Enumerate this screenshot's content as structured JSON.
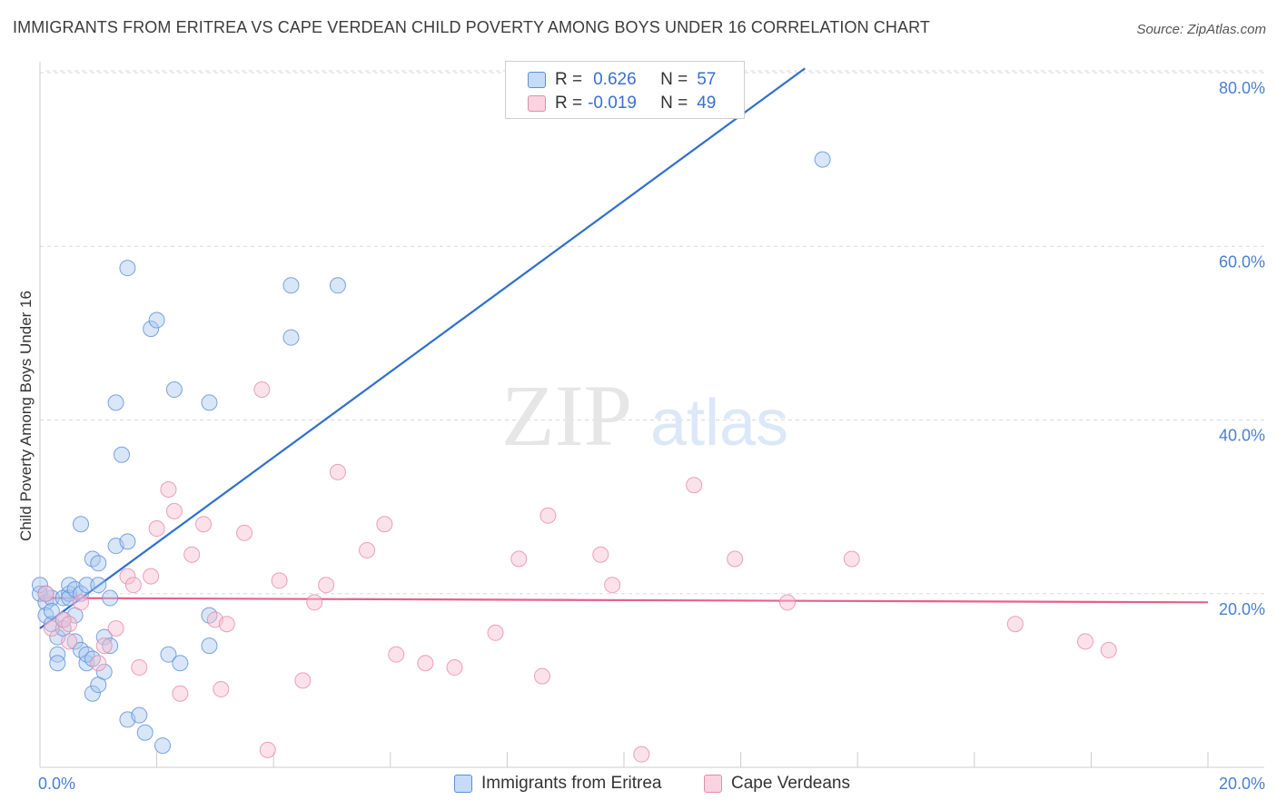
{
  "header": {
    "title": "IMMIGRANTS FROM ERITREA VS CAPE VERDEAN CHILD POVERTY AMONG BOYS UNDER 16 CORRELATION CHART",
    "source": "Source: ZipAtlas.com"
  },
  "watermark": {
    "zip": "ZIP",
    "atlas": "atlas"
  },
  "legend": {
    "rows": [
      {
        "r_label": "R =",
        "r_value": "0.626",
        "n_label": "N =",
        "n_value": "57"
      },
      {
        "r_label": "R =",
        "r_value": "-0.019",
        "n_label": "N =",
        "n_value": "49"
      }
    ]
  },
  "colors": {
    "eritrea_fill": "#a8c8f0",
    "eritrea_stroke": "#5b8fd8",
    "eritrea_line": "#2f6fcf",
    "cape_fill": "#f7bfd0",
    "cape_stroke": "#e88aa8",
    "cape_line": "#e8608a",
    "tick_text": "#4a7fd0",
    "grid": "#d9d9d9"
  },
  "chart_data": {
    "type": "scatter",
    "title": "IMMIGRANTS FROM ERITREA VS CAPE VERDEAN CHILD POVERTY AMONG BOYS UNDER 16 CORRELATION CHART",
    "xlabel": "",
    "ylabel": "Child Poverty Among Boys Under 16",
    "xlim": [
      0,
      20
    ],
    "ylim": [
      0,
      80
    ],
    "x_ticks": [
      "0.0%",
      "20.0%"
    ],
    "y_ticks": [
      "20.0%",
      "40.0%",
      "60.0%",
      "80.0%"
    ],
    "legend_position": "bottom",
    "series": [
      {
        "name": "Immigrants from Eritrea",
        "trendline": {
          "x": [
            0,
            13.1
          ],
          "y": [
            16.0,
            80.5
          ]
        },
        "points": [
          [
            0.0,
            20.0
          ],
          [
            0.1,
            19.0
          ],
          [
            0.1,
            17.5
          ],
          [
            0.2,
            16.5
          ],
          [
            0.2,
            19.5
          ],
          [
            0.3,
            15.0
          ],
          [
            0.3,
            13.0
          ],
          [
            0.3,
            12.0
          ],
          [
            0.4,
            16.0
          ],
          [
            0.4,
            19.5
          ],
          [
            0.5,
            20.0
          ],
          [
            0.5,
            19.5
          ],
          [
            0.5,
            21.0
          ],
          [
            0.6,
            20.5
          ],
          [
            0.6,
            17.5
          ],
          [
            0.6,
            14.5
          ],
          [
            0.7,
            20.0
          ],
          [
            0.7,
            13.5
          ],
          [
            0.7,
            28.0
          ],
          [
            0.8,
            12.0
          ],
          [
            0.8,
            13.0
          ],
          [
            0.8,
            21.0
          ],
          [
            0.9,
            12.5
          ],
          [
            0.9,
            24.0
          ],
          [
            0.9,
            8.5
          ],
          [
            1.0,
            21.0
          ],
          [
            1.0,
            23.5
          ],
          [
            1.0,
            9.5
          ],
          [
            1.1,
            11.0
          ],
          [
            1.1,
            15.0
          ],
          [
            1.2,
            14.0
          ],
          [
            1.2,
            19.5
          ],
          [
            1.3,
            25.5
          ],
          [
            1.3,
            42.0
          ],
          [
            1.4,
            36.0
          ],
          [
            1.5,
            26.0
          ],
          [
            1.5,
            57.5
          ],
          [
            1.5,
            5.5
          ],
          [
            1.7,
            6.0
          ],
          [
            1.8,
            4.0
          ],
          [
            1.9,
            50.5
          ],
          [
            2.0,
            51.5
          ],
          [
            2.1,
            2.5
          ],
          [
            2.2,
            13.0
          ],
          [
            2.3,
            43.5
          ],
          [
            2.4,
            12.0
          ],
          [
            2.9,
            42.0
          ],
          [
            2.9,
            17.5
          ],
          [
            2.9,
            14.0
          ],
          [
            4.3,
            55.5
          ],
          [
            4.3,
            49.5
          ],
          [
            5.1,
            55.5
          ],
          [
            13.4,
            70.0
          ],
          [
            0.0,
            21.0
          ],
          [
            0.1,
            20.0
          ],
          [
            0.2,
            18.0
          ],
          [
            0.4,
            17.0
          ]
        ]
      },
      {
        "name": "Cape Verdeans",
        "trendline": {
          "x": [
            0,
            20
          ],
          "y": [
            19.5,
            19.0
          ]
        },
        "points": [
          [
            0.1,
            20.0
          ],
          [
            0.2,
            16.0
          ],
          [
            0.4,
            17.0
          ],
          [
            0.5,
            14.5
          ],
          [
            0.5,
            16.5
          ],
          [
            0.7,
            19.0
          ],
          [
            1.0,
            12.0
          ],
          [
            1.1,
            14.0
          ],
          [
            1.3,
            16.0
          ],
          [
            1.5,
            22.0
          ],
          [
            1.6,
            21.0
          ],
          [
            1.7,
            11.5
          ],
          [
            1.9,
            22.0
          ],
          [
            2.0,
            27.5
          ],
          [
            2.2,
            32.0
          ],
          [
            2.3,
            29.5
          ],
          [
            2.4,
            8.5
          ],
          [
            2.6,
            24.5
          ],
          [
            2.8,
            28.0
          ],
          [
            3.0,
            17.0
          ],
          [
            3.1,
            9.0
          ],
          [
            3.2,
            16.5
          ],
          [
            3.5,
            27.0
          ],
          [
            3.8,
            43.5
          ],
          [
            3.9,
            2.0
          ],
          [
            4.1,
            21.5
          ],
          [
            4.5,
            10.0
          ],
          [
            4.7,
            19.0
          ],
          [
            4.9,
            21.0
          ],
          [
            5.1,
            34.0
          ],
          [
            5.6,
            25.0
          ],
          [
            5.9,
            28.0
          ],
          [
            6.1,
            13.0
          ],
          [
            6.6,
            12.0
          ],
          [
            7.1,
            11.5
          ],
          [
            7.8,
            15.5
          ],
          [
            8.2,
            24.0
          ],
          [
            8.6,
            10.5
          ],
          [
            8.7,
            29.0
          ],
          [
            9.6,
            24.5
          ],
          [
            9.8,
            21.0
          ],
          [
            10.3,
            1.5
          ],
          [
            11.2,
            32.5
          ],
          [
            11.9,
            24.0
          ],
          [
            12.8,
            19.0
          ],
          [
            13.9,
            24.0
          ],
          [
            16.7,
            16.5
          ],
          [
            17.9,
            14.5
          ],
          [
            18.3,
            13.5
          ]
        ]
      }
    ]
  },
  "bottom_legend": {
    "items": [
      {
        "label": "Immigrants from Eritrea"
      },
      {
        "label": "Cape Verdeans"
      }
    ]
  }
}
